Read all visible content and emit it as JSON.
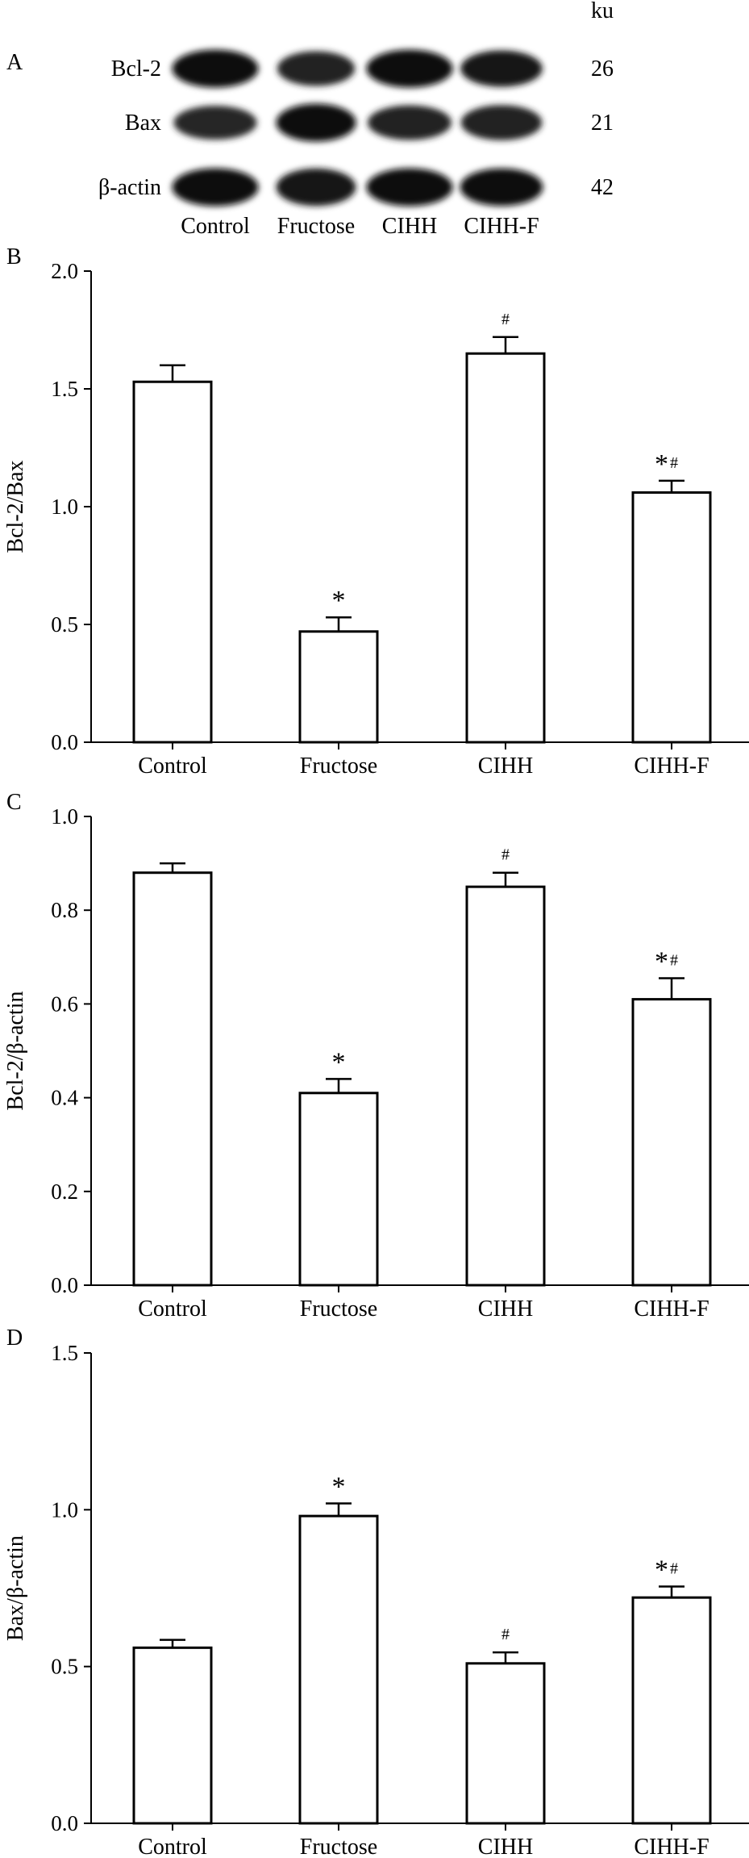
{
  "panel_a": {
    "panel_label": "A",
    "unit_label": "ku",
    "rows": [
      {
        "name": "Bcl-2",
        "size": "26",
        "intensity": [
          0.95,
          0.75,
          0.95,
          0.85
        ]
      },
      {
        "name": "Bax",
        "size": "21",
        "intensity": [
          0.7,
          0.95,
          0.75,
          0.78
        ]
      },
      {
        "name": "β-actin",
        "size": "42",
        "intensity": [
          0.95,
          0.92,
          0.95,
          0.93
        ]
      }
    ],
    "lanes": [
      "Control",
      "Fructose",
      "CIHH",
      "CIHH-F"
    ]
  },
  "chart_data": [
    {
      "type": "bar",
      "panel_label": "B",
      "title": "",
      "categories": [
        "Control",
        "Fructose",
        "CIHH",
        "CIHH-F"
      ],
      "values": [
        1.53,
        0.47,
        1.65,
        1.06
      ],
      "errors": [
        0.07,
        0.06,
        0.07,
        0.05
      ],
      "annotations": [
        {
          "star": "",
          "hash": ""
        },
        {
          "star": "*",
          "hash": ""
        },
        {
          "star": "",
          "hash": "#"
        },
        {
          "star": "*",
          "hash": "#"
        }
      ],
      "xlabel": "",
      "ylabel": "Bcl-2/Bax",
      "ylim": [
        0,
        2.0
      ],
      "yticks": [
        "0.0",
        "0.5",
        "1.0",
        "1.5",
        "2.0"
      ],
      "ytick_values": [
        0,
        0.5,
        1.0,
        1.5,
        2.0
      ],
      "grid": false
    },
    {
      "type": "bar",
      "panel_label": "C",
      "title": "",
      "categories": [
        "Control",
        "Fructose",
        "CIHH",
        "CIHH-F"
      ],
      "values": [
        0.88,
        0.41,
        0.85,
        0.61
      ],
      "errors": [
        0.02,
        0.03,
        0.03,
        0.045
      ],
      "annotations": [
        {
          "star": "",
          "hash": ""
        },
        {
          "star": "*",
          "hash": ""
        },
        {
          "star": "",
          "hash": "#"
        },
        {
          "star": "*",
          "hash": "#"
        }
      ],
      "xlabel": "",
      "ylabel": "Bcl-2/β-actin",
      "ylim": [
        0,
        1.0
      ],
      "yticks": [
        "0.0",
        "0.2",
        "0.4",
        "0.6",
        "0.8",
        "1.0"
      ],
      "ytick_values": [
        0,
        0.2,
        0.4,
        0.6,
        0.8,
        1.0
      ],
      "grid": false
    },
    {
      "type": "bar",
      "panel_label": "D",
      "title": "",
      "categories": [
        "Control",
        "Fructose",
        "CIHH",
        "CIHH-F"
      ],
      "values": [
        0.56,
        0.98,
        0.51,
        0.72
      ],
      "errors": [
        0.025,
        0.04,
        0.035,
        0.035
      ],
      "annotations": [
        {
          "star": "",
          "hash": ""
        },
        {
          "star": "*",
          "hash": ""
        },
        {
          "star": "",
          "hash": "#"
        },
        {
          "star": "*",
          "hash": "#"
        }
      ],
      "xlabel": "",
      "ylabel": "Bax/β-actin",
      "ylim": [
        0,
        1.5
      ],
      "yticks": [
        "0.0",
        "0.5",
        "1.0",
        "1.5"
      ],
      "ytick_values": [
        0,
        0.5,
        1.0,
        1.5
      ],
      "grid": false
    }
  ]
}
